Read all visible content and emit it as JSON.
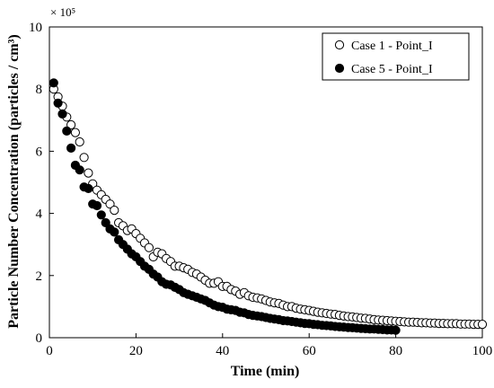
{
  "chart_data": {
    "type": "scatter",
    "xlabel": "Time (min)",
    "ylabel": "Particle Number Concentration (particles / cm³)",
    "y_multiplier": "× 10⁵",
    "xlim": [
      0,
      100
    ],
    "ylim": [
      0,
      10
    ],
    "xticks": [
      "0",
      "20",
      "40",
      "60",
      "80",
      "100"
    ],
    "yticks": [
      "0",
      "2",
      "4",
      "6",
      "8",
      "10"
    ],
    "grid": false,
    "legend_position": "top-right",
    "series": [
      {
        "name": "Case 1 - Point_I",
        "marker": "open-circle",
        "color": "#000000",
        "x": [
          1,
          2,
          3,
          4,
          5,
          6,
          7,
          8,
          9,
          10,
          11,
          12,
          13,
          14,
          15,
          16,
          17,
          18,
          19,
          20,
          21,
          22,
          23,
          24,
          25,
          26,
          27,
          28,
          29,
          30,
          31,
          32,
          33,
          34,
          35,
          36,
          37,
          38,
          39,
          40,
          41,
          42,
          43,
          44,
          45,
          46,
          47,
          48,
          49,
          50,
          51,
          52,
          53,
          54,
          55,
          56,
          57,
          58,
          59,
          60,
          61,
          62,
          63,
          64,
          65,
          66,
          67,
          68,
          69,
          70,
          71,
          72,
          73,
          74,
          75,
          76,
          77,
          78,
          79,
          80,
          81,
          82,
          83,
          84,
          85,
          86,
          87,
          88,
          89,
          90,
          91,
          92,
          93,
          94,
          95,
          96,
          97,
          98,
          99,
          100
        ],
        "values": [
          8.0,
          7.75,
          7.45,
          7.1,
          6.85,
          6.6,
          6.3,
          5.8,
          5.3,
          4.95,
          4.75,
          4.6,
          4.45,
          4.3,
          4.1,
          3.7,
          3.6,
          3.45,
          3.5,
          3.35,
          3.2,
          3.05,
          2.9,
          2.6,
          2.75,
          2.7,
          2.55,
          2.45,
          2.3,
          2.3,
          2.25,
          2.2,
          2.1,
          2.05,
          1.95,
          1.85,
          1.75,
          1.75,
          1.8,
          1.65,
          1.65,
          1.55,
          1.5,
          1.4,
          1.45,
          1.35,
          1.3,
          1.28,
          1.25,
          1.2,
          1.15,
          1.12,
          1.1,
          1.05,
          1.0,
          1.0,
          0.95,
          0.92,
          0.9,
          0.88,
          0.85,
          0.82,
          0.8,
          0.78,
          0.76,
          0.75,
          0.72,
          0.7,
          0.68,
          0.67,
          0.65,
          0.63,
          0.62,
          0.6,
          0.58,
          0.57,
          0.56,
          0.55,
          0.54,
          0.53,
          0.52,
          0.51,
          0.5,
          0.5,
          0.49,
          0.48,
          0.48,
          0.47,
          0.47,
          0.46,
          0.46,
          0.45,
          0.45,
          0.45,
          0.44,
          0.44,
          0.44,
          0.43,
          0.43,
          0.43
        ]
      },
      {
        "name": "Case 5 - Point_I",
        "marker": "filled-circle",
        "color": "#000000",
        "x": [
          1,
          2,
          3,
          4,
          5,
          6,
          7,
          8,
          9,
          10,
          11,
          12,
          13,
          14,
          15,
          16,
          17,
          18,
          19,
          20,
          21,
          22,
          23,
          24,
          25,
          26,
          27,
          28,
          29,
          30,
          31,
          32,
          33,
          34,
          35,
          36,
          37,
          38,
          39,
          40,
          41,
          42,
          43,
          44,
          45,
          46,
          47,
          48,
          49,
          50,
          51,
          52,
          53,
          54,
          55,
          56,
          57,
          58,
          59,
          60,
          61,
          62,
          63,
          64,
          65,
          66,
          67,
          68,
          69,
          70,
          71,
          72,
          73,
          74,
          75,
          76,
          77,
          78,
          79,
          80
        ],
        "values": [
          8.2,
          7.55,
          7.2,
          6.65,
          6.1,
          5.55,
          5.4,
          4.85,
          4.8,
          4.3,
          4.25,
          3.95,
          3.7,
          3.5,
          3.4,
          3.15,
          3.0,
          2.85,
          2.7,
          2.6,
          2.45,
          2.3,
          2.2,
          2.05,
          1.95,
          1.8,
          1.72,
          1.7,
          1.62,
          1.55,
          1.45,
          1.4,
          1.35,
          1.3,
          1.25,
          1.2,
          1.12,
          1.05,
          1.0,
          0.98,
          0.92,
          0.9,
          0.88,
          0.82,
          0.8,
          0.75,
          0.72,
          0.7,
          0.68,
          0.65,
          0.62,
          0.6,
          0.58,
          0.55,
          0.54,
          0.52,
          0.5,
          0.48,
          0.46,
          0.45,
          0.43,
          0.42,
          0.4,
          0.39,
          0.38,
          0.36,
          0.35,
          0.34,
          0.33,
          0.32,
          0.31,
          0.3,
          0.29,
          0.28,
          0.28,
          0.27,
          0.26,
          0.25,
          0.25,
          0.24
        ]
      }
    ]
  }
}
